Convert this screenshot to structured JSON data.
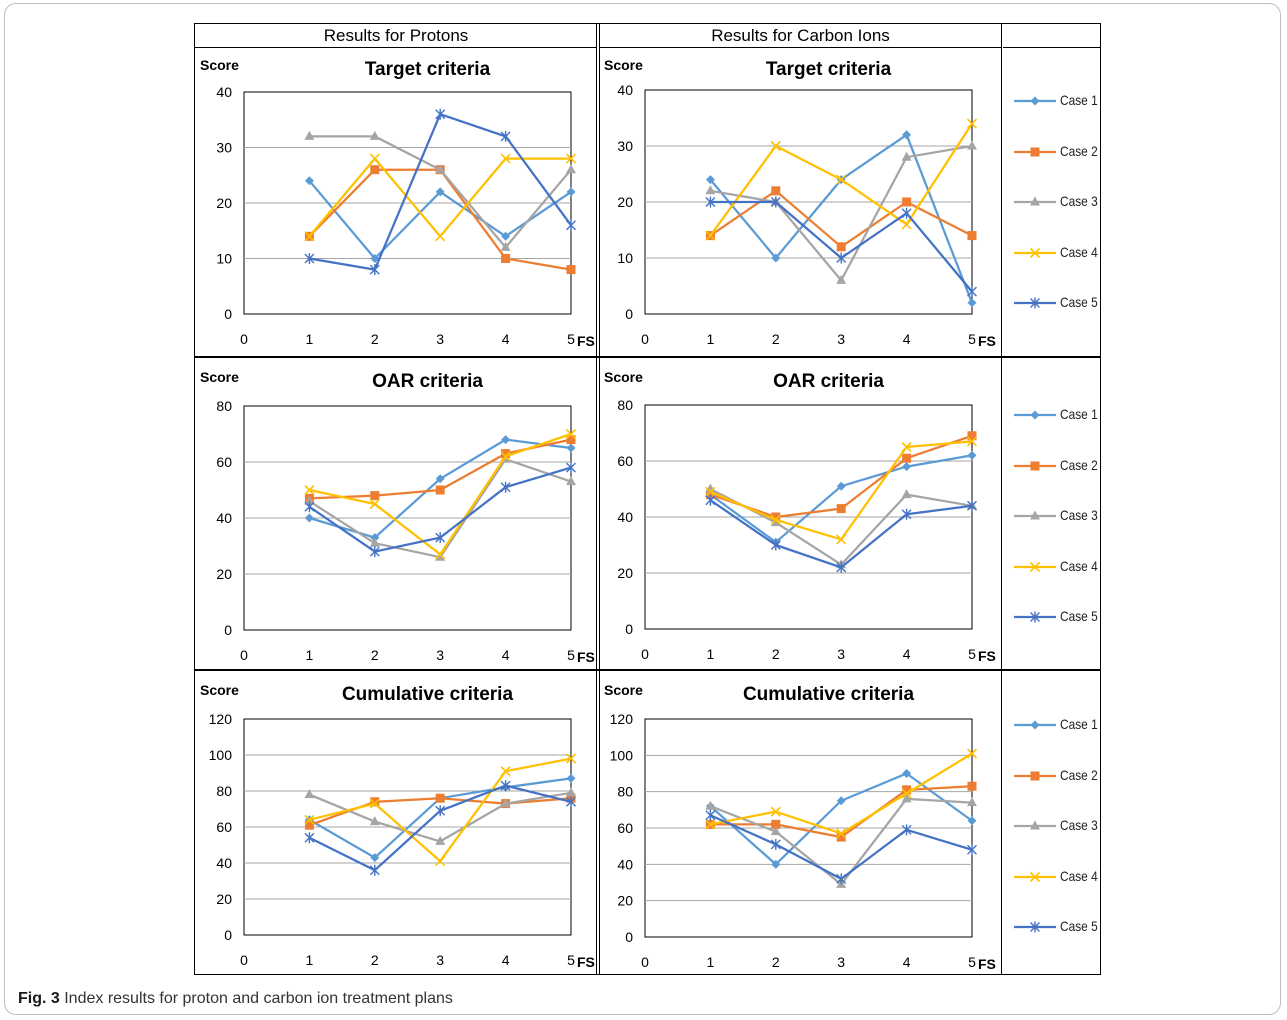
{
  "headers": {
    "protons": "Results for Protons",
    "carbon": "Results for Carbon Ions"
  },
  "caption": {
    "label": "Fig. 3",
    "text": "Index results for proton and carbon ion treatment plans"
  },
  "legend": [
    {
      "name": "Case 1",
      "color": "#5b9bd5",
      "marker": "diamond"
    },
    {
      "name": "Case 2",
      "color": "#ed7d31",
      "marker": "square"
    },
    {
      "name": "Case 3",
      "color": "#a5a5a5",
      "marker": "triangle"
    },
    {
      "name": "Case 4",
      "color": "#ffc000",
      "marker": "x"
    },
    {
      "name": "Case 5",
      "color": "#4472c4",
      "marker": "star"
    }
  ],
  "chart_data": [
    {
      "type": "line",
      "column": "Results for Protons",
      "title": "Target criteria",
      "ylabel": "Score",
      "xlabel": "FS",
      "x": [
        1,
        2,
        3,
        4,
        5
      ],
      "xlim": [
        0,
        5
      ],
      "ylim": [
        0,
        40
      ],
      "yticks": [
        0,
        10,
        20,
        30,
        40
      ],
      "grid": true,
      "series": [
        {
          "name": "Case 1",
          "values": [
            24,
            10,
            22,
            14,
            22
          ]
        },
        {
          "name": "Case 2",
          "values": [
            14,
            26,
            26,
            10,
            8
          ]
        },
        {
          "name": "Case 3",
          "values": [
            32,
            32,
            26,
            12,
            26
          ]
        },
        {
          "name": "Case 4",
          "values": [
            14,
            28,
            14,
            28,
            28
          ]
        },
        {
          "name": "Case 5",
          "values": [
            10,
            8,
            36,
            32,
            16
          ]
        }
      ]
    },
    {
      "type": "line",
      "column": "Results for Carbon Ions",
      "title": "Target criteria",
      "ylabel": "Score",
      "xlabel": "FS",
      "x": [
        1,
        2,
        3,
        4,
        5
      ],
      "xlim": [
        0,
        5
      ],
      "ylim": [
        0,
        40
      ],
      "yticks": [
        0,
        10,
        20,
        30,
        40
      ],
      "grid": true,
      "series": [
        {
          "name": "Case 1",
          "values": [
            24,
            10,
            24,
            32,
            2
          ]
        },
        {
          "name": "Case 2",
          "values": [
            14,
            22,
            12,
            20,
            14
          ]
        },
        {
          "name": "Case 3",
          "values": [
            22,
            20,
            6,
            28,
            30
          ]
        },
        {
          "name": "Case 4",
          "values": [
            14,
            30,
            24,
            16,
            34
          ]
        },
        {
          "name": "Case 5",
          "values": [
            20,
            20,
            10,
            18,
            4
          ]
        }
      ]
    },
    {
      "type": "line",
      "column": "Results for Protons",
      "title": "OAR criteria",
      "ylabel": "Score",
      "xlabel": "FS",
      "x": [
        1,
        2,
        3,
        4,
        5
      ],
      "xlim": [
        0,
        5
      ],
      "ylim": [
        0,
        80
      ],
      "yticks": [
        0,
        20,
        40,
        60,
        80
      ],
      "grid": true,
      "series": [
        {
          "name": "Case 1",
          "values": [
            40,
            33,
            54,
            68,
            65
          ]
        },
        {
          "name": "Case 2",
          "values": [
            47,
            48,
            50,
            63,
            68
          ]
        },
        {
          "name": "Case 3",
          "values": [
            46,
            31,
            26,
            61,
            53
          ]
        },
        {
          "name": "Case 4",
          "values": [
            50,
            45,
            27,
            62,
            70
          ]
        },
        {
          "name": "Case 5",
          "values": [
            44,
            28,
            33,
            51,
            58
          ]
        }
      ]
    },
    {
      "type": "line",
      "column": "Results for Carbon Ions",
      "title": "OAR criteria",
      "ylabel": "Score",
      "xlabel": "FS",
      "x": [
        1,
        2,
        3,
        4,
        5
      ],
      "xlim": [
        0,
        5
      ],
      "ylim": [
        0,
        80
      ],
      "yticks": [
        0,
        20,
        40,
        60,
        80
      ],
      "grid": true,
      "series": [
        {
          "name": "Case 1",
          "values": [
            48,
            31,
            51,
            58,
            62
          ]
        },
        {
          "name": "Case 2",
          "values": [
            48,
            40,
            43,
            61,
            69
          ]
        },
        {
          "name": "Case 3",
          "values": [
            50,
            38,
            23,
            48,
            44
          ]
        },
        {
          "name": "Case 4",
          "values": [
            49,
            39,
            32,
            65,
            67
          ]
        },
        {
          "name": "Case 5",
          "values": [
            46,
            30,
            22,
            41,
            44
          ]
        }
      ]
    },
    {
      "type": "line",
      "column": "Results for Protons",
      "title": "Cumulative criteria",
      "ylabel": "Score",
      "xlabel": "FS",
      "x": [
        1,
        2,
        3,
        4,
        5
      ],
      "xlim": [
        0,
        5
      ],
      "ylim": [
        0,
        120
      ],
      "yticks": [
        0,
        20,
        40,
        60,
        80,
        100,
        120
      ],
      "grid": true,
      "series": [
        {
          "name": "Case 1",
          "values": [
            64,
            43,
            76,
            82,
            87
          ]
        },
        {
          "name": "Case 2",
          "values": [
            61,
            74,
            76,
            73,
            76
          ]
        },
        {
          "name": "Case 3",
          "values": [
            78,
            63,
            52,
            73,
            79
          ]
        },
        {
          "name": "Case 4",
          "values": [
            64,
            73,
            41,
            91,
            98
          ]
        },
        {
          "name": "Case 5",
          "values": [
            54,
            36,
            69,
            83,
            74
          ]
        }
      ]
    },
    {
      "type": "line",
      "column": "Results for Carbon Ions",
      "title": "Cumulative criteria",
      "ylabel": "Score",
      "xlabel": "FS",
      "x": [
        1,
        2,
        3,
        4,
        5
      ],
      "xlim": [
        0,
        5
      ],
      "ylim": [
        0,
        120
      ],
      "yticks": [
        0,
        20,
        40,
        60,
        80,
        100,
        120
      ],
      "grid": true,
      "series": [
        {
          "name": "Case 1",
          "values": [
            72,
            40,
            75,
            90,
            64
          ]
        },
        {
          "name": "Case 2",
          "values": [
            62,
            62,
            55,
            81,
            83
          ]
        },
        {
          "name": "Case 3",
          "values": [
            72,
            58,
            29,
            76,
            74
          ]
        },
        {
          "name": "Case 4",
          "values": [
            62,
            69,
            57,
            79,
            101
          ]
        },
        {
          "name": "Case 5",
          "values": [
            67,
            51,
            32,
            59,
            48
          ]
        }
      ]
    }
  ]
}
